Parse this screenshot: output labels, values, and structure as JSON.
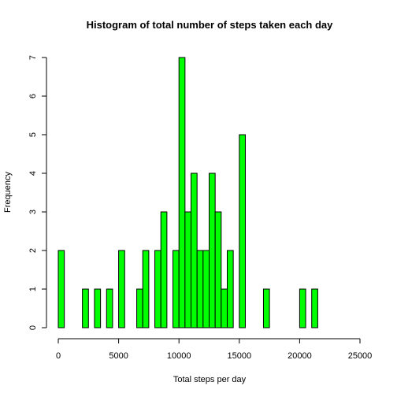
{
  "chart_data": {
    "type": "bar",
    "title": "Histogram of total number of steps taken each day",
    "xlabel": "Total steps per day",
    "ylabel": "Frequency",
    "bin_width": 500,
    "bin_starts": [
      0,
      2000,
      3000,
      4000,
      5000,
      6500,
      7000,
      8000,
      8500,
      9500,
      10000,
      10500,
      11000,
      11500,
      12000,
      12500,
      13000,
      13500,
      14000,
      15000,
      17000,
      20000,
      21000
    ],
    "values": [
      2,
      1,
      1,
      1,
      2,
      1,
      2,
      2,
      3,
      2,
      7,
      3,
      4,
      2,
      2,
      4,
      3,
      1,
      2,
      5,
      1,
      1,
      1
    ],
    "xlim": [
      0,
      25000
    ],
    "ylim": [
      0,
      7
    ],
    "x_ticks": [
      0,
      5000,
      10000,
      15000,
      20000,
      25000
    ],
    "x_tick_labels": [
      "0",
      "5000",
      "10000",
      "15000",
      "20000",
      "25000"
    ],
    "y_ticks": [
      0,
      1,
      2,
      3,
      4,
      5,
      6,
      7
    ],
    "y_tick_labels": [
      "0",
      "1",
      "2",
      "3",
      "4",
      "5",
      "6",
      "7"
    ],
    "bar_color": "#00ff00",
    "bar_border_color": "#000000",
    "grid": false,
    "legend": "none"
  }
}
